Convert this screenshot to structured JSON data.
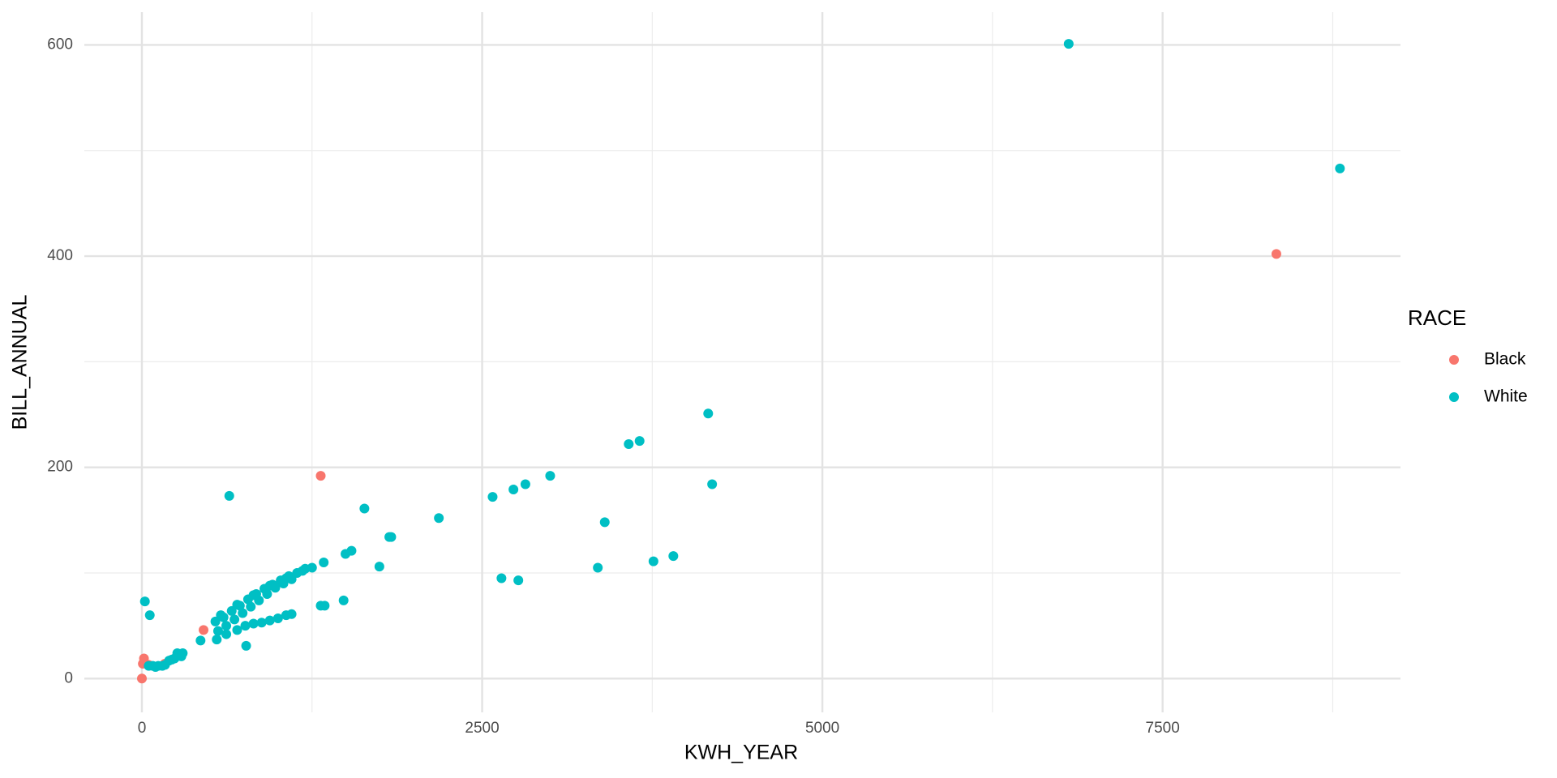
{
  "chart_data": {
    "type": "scatter",
    "x_label": "KWH_YEAR",
    "y_label": "BILL_ANNUAL",
    "legend_title": "RACE",
    "legend": "right",
    "grid": true,
    "xlim": [
      -423,
      9248
    ],
    "ylim": [
      -32,
      631
    ],
    "xticks": [
      0,
      2500,
      5000,
      7500
    ],
    "yticks": [
      0,
      200,
      400,
      600
    ],
    "xminor": [
      1250,
      3750,
      6250,
      8750
    ],
    "yminor": [
      100,
      300,
      500
    ],
    "series": [
      {
        "name": "Black",
        "color": "#F8766D",
        "x": [
          0,
          15,
          7,
          168,
          453,
          1314,
          8336,
          50
        ],
        "values": [
          0,
          19,
          14,
          14,
          46,
          192,
          402,
          13
        ]
      },
      {
        "name": "White",
        "color": "#00BFC4",
        "x": [
          6810,
          8803,
          4161,
          3577,
          3657,
          4190,
          3000,
          2818,
          2730,
          2577,
          2182,
          3401,
          642,
          1635,
          1818,
          1832,
          1496,
          1540,
          1336,
          1745,
          3350,
          3759,
          3905,
          2642,
          2766,
          1482,
          1343,
          1314,
          22,
          58,
          431,
          766,
          540,
          600,
          660,
          720,
          780,
          840,
          900,
          960,
          1020,
          1080,
          1140,
          1200,
          1250,
          580,
          700,
          820,
          940,
          1060,
          1180,
          560,
          620,
          680,
          740,
          800,
          860,
          920,
          980,
          1040,
          1100,
          550,
          620,
          700,
          760,
          820,
          880,
          940,
          1000,
          1060,
          1100,
          50,
          80,
          120,
          170,
          200,
          240,
          260,
          290,
          300,
          100,
          150,
          220
        ],
        "values": [
          601,
          483,
          251,
          222,
          225,
          184,
          192,
          184,
          179,
          172,
          152,
          148,
          173,
          161,
          134,
          134,
          118,
          121,
          110,
          106,
          105,
          111,
          116,
          95,
          93,
          74,
          69,
          69,
          73,
          60,
          36,
          31,
          54,
          58,
          64,
          69,
          75,
          80,
          85,
          89,
          93,
          97,
          100,
          104,
          105,
          60,
          70,
          79,
          88,
          95,
          102,
          45,
          50,
          56,
          62,
          68,
          74,
          80,
          86,
          90,
          94,
          37,
          42,
          46,
          50,
          52,
          53,
          55,
          57,
          60,
          61,
          12,
          12,
          12,
          13,
          17,
          19,
          24,
          21,
          24,
          11,
          12,
          18
        ]
      }
    ]
  }
}
